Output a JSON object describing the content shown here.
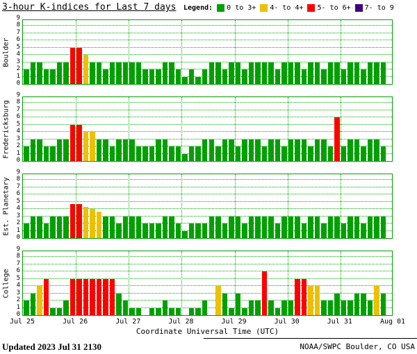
{
  "title": "3-hour K-indices for Last 7 days",
  "legend": {
    "label": "Legend:",
    "items": [
      {
        "label": "0 to 3+",
        "color": "green"
      },
      {
        "label": "4- to 4+",
        "color": "yellow"
      },
      {
        "label": "5- to 6+",
        "color": "red"
      },
      {
        "label": "7- to 9",
        "color": "purple"
      }
    ]
  },
  "xlabel": "Coordinate Universal Time (UTC)",
  "footer": {
    "updated": "Updated 2023 Jul 31 2130",
    "credit": "NOAA/SWPC Boulder, CO USA"
  },
  "chart_data": {
    "type": "bar",
    "title": "3-hour K-indices for Last 7 days",
    "xlabel": "Coordinate Universal Time (UTC)",
    "x_ticks": [
      "Jul 25",
      "Jul 26",
      "Jul 27",
      "Jul 28",
      "Jul 29",
      "Jul 30",
      "Jul 31",
      "Aug 01"
    ],
    "y_ticks": [
      0,
      1,
      2,
      3,
      4,
      5,
      6,
      7,
      8,
      9
    ],
    "ylim": [
      0,
      9
    ],
    "days": 7,
    "bars_per_day": 8,
    "grid": "dotted green, horizontal each unit, vertical each day",
    "colors": {
      "green": "#00a000",
      "yellow": "#edc000",
      "red": "#ff0000",
      "purple": "#400080",
      "axis": "#00a000"
    },
    "color_rule": "k<4- green, 4- to 4+ yellow, 5- to 6+ red, 7- to 9 purple",
    "series": [
      {
        "name": "Boulder",
        "values": [
          2,
          3,
          3,
          2,
          2,
          3,
          3,
          5,
          5,
          4,
          3,
          3,
          2,
          3,
          3,
          3,
          3,
          3,
          2,
          2,
          2,
          3,
          3,
          2,
          1,
          2,
          1,
          2,
          3,
          3,
          2,
          3,
          3,
          2,
          3,
          3,
          3,
          3,
          2,
          3,
          3,
          3,
          2,
          3,
          3,
          2,
          3,
          3,
          2,
          3,
          3,
          2,
          3,
          3,
          3
        ]
      },
      {
        "name": "Fredericksburg",
        "values": [
          2,
          3,
          3,
          2,
          2,
          3,
          3,
          5,
          5,
          4,
          4,
          3,
          3,
          2,
          3,
          3,
          3,
          2,
          2,
          2,
          3,
          3,
          2,
          2,
          1,
          2,
          2,
          3,
          3,
          2,
          3,
          3,
          2,
          3,
          3,
          3,
          2,
          3,
          3,
          2,
          3,
          3,
          3,
          2,
          3,
          3,
          2,
          6,
          2,
          3,
          3,
          2,
          3,
          3,
          2
        ]
      },
      {
        "name": "Est. Planetary",
        "values": [
          2,
          3,
          3,
          2,
          3,
          3,
          3,
          4.67,
          4.67,
          4.33,
          4,
          3.67,
          3,
          3,
          2,
          3,
          3,
          3,
          2,
          2,
          2,
          3,
          3,
          2,
          1,
          2,
          2,
          2,
          3,
          3,
          2,
          3,
          3,
          2,
          3,
          3,
          3,
          3,
          2,
          3,
          3,
          3,
          2,
          3,
          3,
          2,
          3,
          3,
          2,
          3,
          3,
          2,
          3,
          3,
          3
        ]
      },
      {
        "name": "College",
        "values": [
          2,
          3,
          4,
          5,
          1,
          1,
          2,
          5,
          5,
          5,
          5,
          5,
          5,
          5,
          3,
          2,
          1,
          1,
          0,
          1,
          1,
          2,
          1,
          1,
          0,
          1,
          1,
          2,
          0,
          4,
          3,
          1,
          3,
          1,
          2,
          2,
          6,
          2,
          1,
          2,
          2,
          5,
          5,
          4,
          4,
          2,
          2,
          3,
          2,
          2,
          3,
          3,
          2,
          4,
          3
        ]
      }
    ]
  }
}
